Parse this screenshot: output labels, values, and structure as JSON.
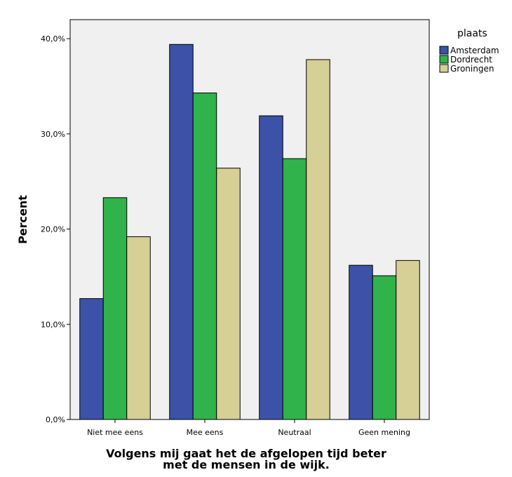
{
  "chart_data": {
    "type": "bar",
    "categories": [
      "Niet mee eens",
      "Mee eens",
      "Neutraal",
      "Geen mening"
    ],
    "series": [
      {
        "name": "Amsterdam",
        "values": [
          12.7,
          39.4,
          31.9,
          16.2
        ],
        "color": "#3b52a8"
      },
      {
        "name": "Dordrecht",
        "values": [
          23.3,
          34.3,
          27.4,
          15.1
        ],
        "color": "#2fb34a"
      },
      {
        "name": "Groningen",
        "values": [
          19.2,
          26.4,
          37.8,
          16.7
        ],
        "color": "#d6cf96"
      }
    ],
    "ylabel": "Percent",
    "xlabel_line1": "Volgens mij gaat het de afgelopen tijd beter",
    "xlabel_line2": "met de mensen in de wijk.",
    "ylim": [
      0,
      42
    ],
    "yticks": [
      {
        "value": 0,
        "label": "0,0%"
      },
      {
        "value": 10,
        "label": "10,0%"
      },
      {
        "value": 20,
        "label": "20,0%"
      },
      {
        "value": 30,
        "label": "30,0%"
      },
      {
        "value": 40,
        "label": "40,0%"
      }
    ],
    "legend_title": "plaats",
    "legend_position": "top-right",
    "plot_background": "#f0f0f0",
    "grid": false
  }
}
